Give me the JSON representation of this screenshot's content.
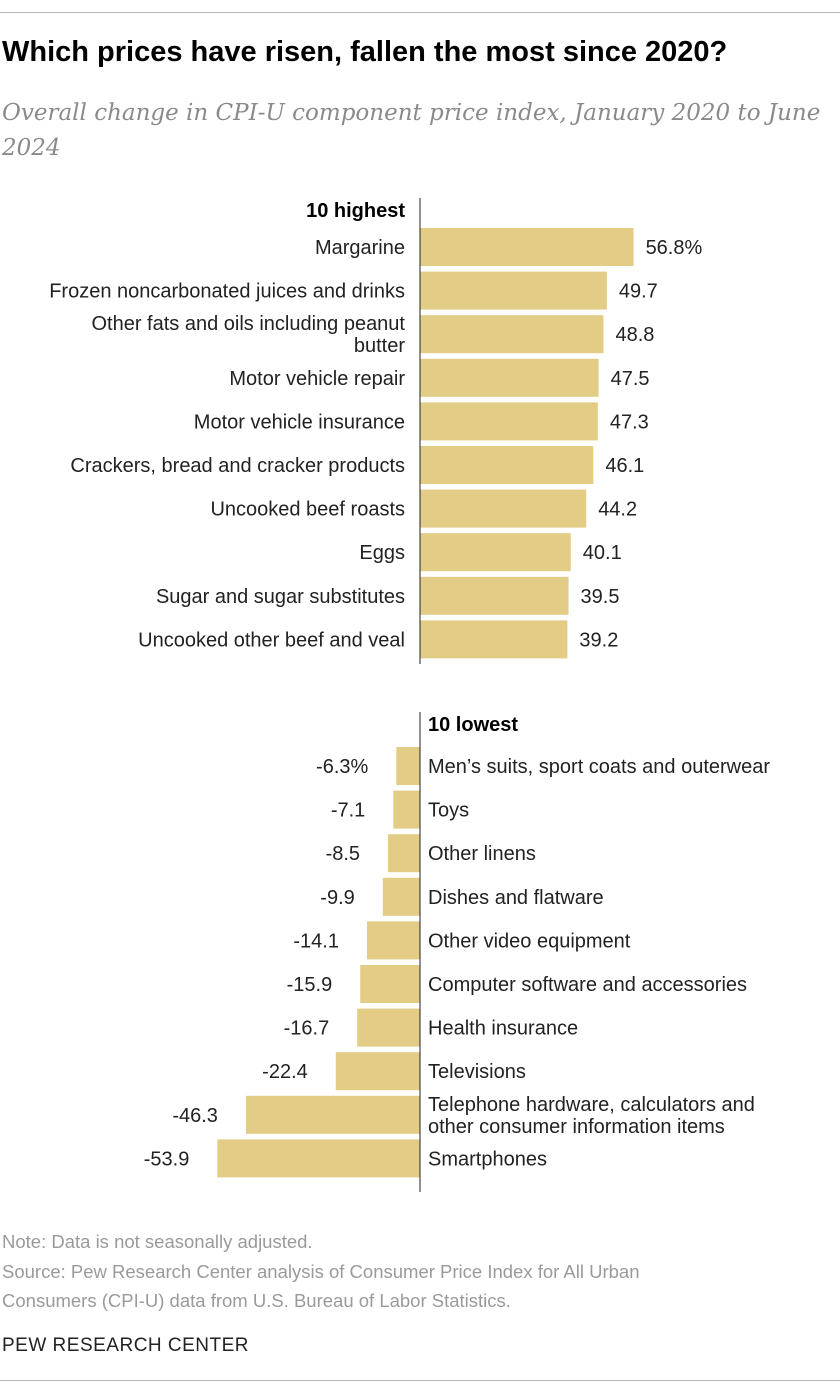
{
  "title": "Which prices have risen, fallen the most since 2020?",
  "subtitle": "Overall change in CPI-U component price index, January 2020 to June 2024",
  "note": "Note: Data is not seasonally adjusted.",
  "source_lines": [
    "Source: Pew Research Center analysis of Consumer Price Index for All Urban",
    "Consumers (CPI-U) data from U.S. Bureau of Labor Statistics."
  ],
  "brand": "PEW RESEARCH CENTER",
  "colors": {
    "bar": "#e3cc86",
    "axis": "#222222"
  },
  "chart_data": {
    "type": "bar",
    "orientation": "horizontal",
    "unit": "%",
    "sections": [
      {
        "heading": "10 highest",
        "categories": [
          "Margarine",
          "Frozen noncarbonated juices and drinks",
          "Other fats and oils including peanut butter",
          "Motor vehicle repair",
          "Motor vehicle insurance",
          "Crackers, bread and cracker products",
          "Uncooked beef roasts",
          "Eggs",
          "Sugar and sugar substitutes",
          "Uncooked other beef and veal"
        ],
        "values": [
          56.8,
          49.7,
          48.8,
          47.5,
          47.3,
          46.1,
          44.2,
          40.1,
          39.5,
          39.2
        ],
        "value_labels": [
          "56.8%",
          "49.7",
          "48.8",
          "47.5",
          "47.3",
          "46.1",
          "44.2",
          "40.1",
          "39.5",
          "39.2"
        ]
      },
      {
        "heading": "10 lowest",
        "categories": [
          "Men’s suits, sport coats and outerwear",
          "Toys",
          "Other linens",
          "Dishes and flatware",
          "Other video equipment",
          "Computer software and accessories",
          "Health insurance",
          "Televisions",
          "Telephone hardware, calculators and other consumer information items",
          "Smartphones"
        ],
        "values": [
          -6.3,
          -7.1,
          -8.5,
          -9.9,
          -14.1,
          -15.9,
          -16.7,
          -22.4,
          -46.3,
          -53.9
        ],
        "value_labels": [
          "-6.3%",
          "-7.1",
          "-8.5",
          "-9.9",
          "-14.1",
          "-15.9",
          "-16.7",
          "-22.4",
          "-46.3",
          "-53.9"
        ]
      }
    ]
  }
}
